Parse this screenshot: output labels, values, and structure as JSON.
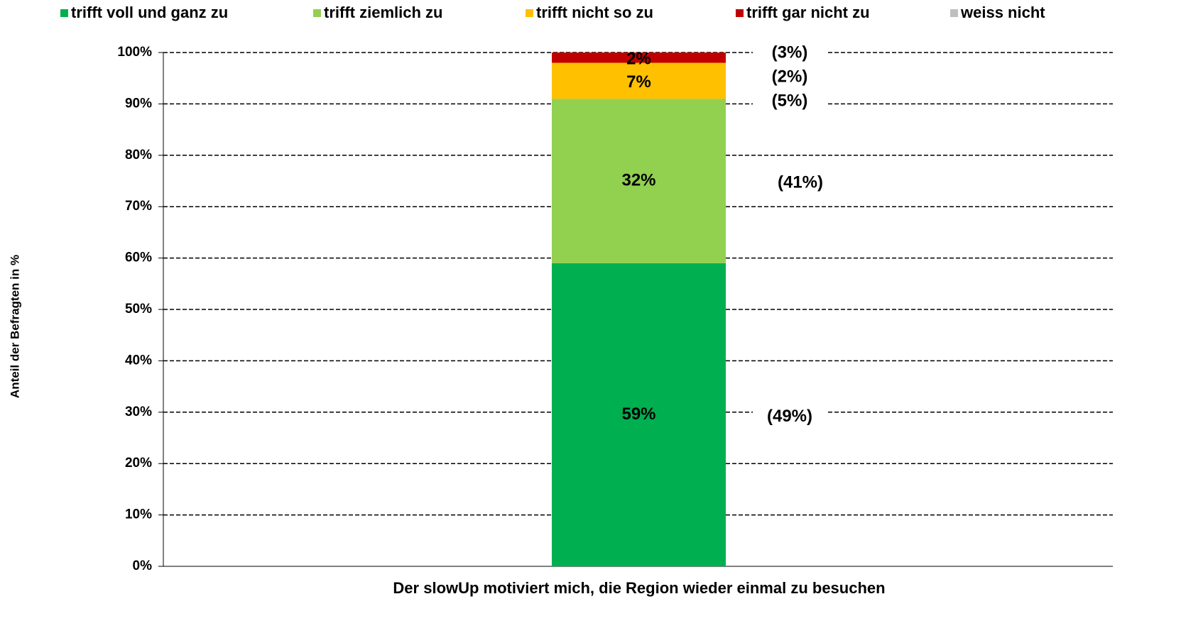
{
  "chart_data": {
    "type": "stacked_bar",
    "categories": [
      "Der slowUp motiviert mich, die Region wieder einmal zu besuchen"
    ],
    "series": [
      {
        "name": "trifft voll und ganz zu",
        "color": "#00b050",
        "values": [
          59
        ],
        "value_labels": [
          "59%"
        ]
      },
      {
        "name": "trifft ziemlich zu",
        "color": "#92d050",
        "values": [
          32
        ],
        "value_labels": [
          "32%"
        ]
      },
      {
        "name": "trifft nicht so zu",
        "color": "#ffc000",
        "values": [
          7
        ],
        "value_labels": [
          "7%"
        ]
      },
      {
        "name": "trifft gar nicht zu",
        "color": "#c00000",
        "values": [
          2
        ],
        "value_labels": [
          "2%"
        ]
      },
      {
        "name": "weiss nicht",
        "color": "#bfbfbf",
        "values": [
          0
        ]
      }
    ],
    "annotations": [
      "(49%)",
      "(41%)",
      "(5%)",
      "(2%)",
      "(3%)"
    ],
    "ylabel": "Anteil der Befragten in %",
    "ylim": [
      0,
      100
    ],
    "yticks": [
      {
        "value": 0,
        "label": "0%"
      },
      {
        "value": 10,
        "label": "10%"
      },
      {
        "value": 20,
        "label": "20%"
      },
      {
        "value": 30,
        "label": "30%"
      },
      {
        "value": 40,
        "label": "40%"
      },
      {
        "value": 50,
        "label": "50%"
      },
      {
        "value": 60,
        "label": "60%"
      },
      {
        "value": 70,
        "label": "70%"
      },
      {
        "value": 80,
        "label": "80%"
      },
      {
        "value": 90,
        "label": "90%"
      },
      {
        "value": 100,
        "label": "100%"
      }
    ],
    "grid": true,
    "legend": "top"
  }
}
